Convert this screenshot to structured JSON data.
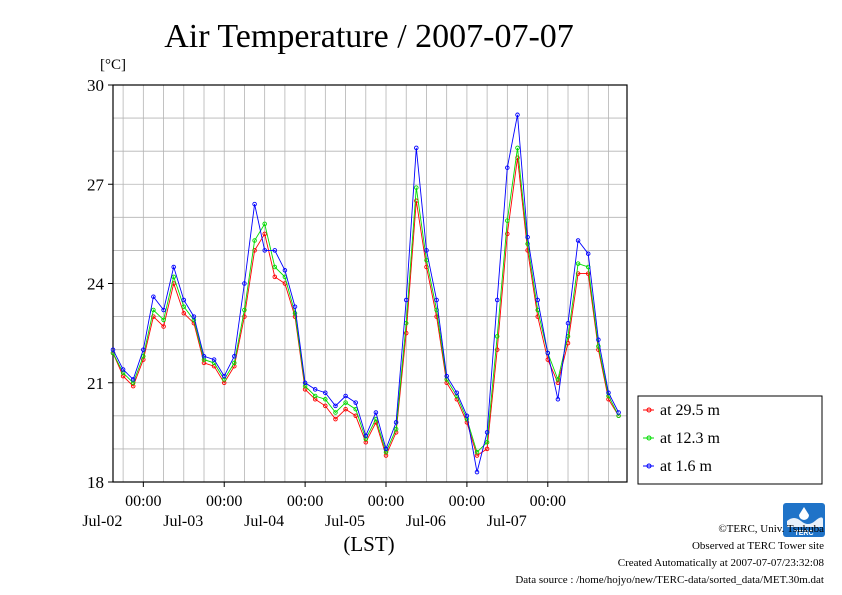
{
  "chart_data": {
    "type": "line",
    "title": "Air Temperature / 2007-07-07",
    "ylabel": "[°C]",
    "xlabel": "(LST)",
    "ylim": [
      18,
      30
    ],
    "yticks": [
      18,
      21,
      24,
      27,
      30
    ],
    "xlim": [
      "2007-07-01 15:00",
      "2007-07-07 23:30"
    ],
    "xticks": [
      {
        "time": "2007-07-02 00:00",
        "label": "00:00",
        "date": "Jul-02"
      },
      {
        "time": "2007-07-03 00:00",
        "label": "00:00",
        "date": "Jul-03"
      },
      {
        "time": "2007-07-04 00:00",
        "label": "00:00",
        "date": "Jul-04"
      },
      {
        "time": "2007-07-05 00:00",
        "label": "00:00",
        "date": "Jul-05"
      },
      {
        "time": "2007-07-06 00:00",
        "label": "00:00",
        "date": "Jul-06"
      },
      {
        "time": "2007-07-07 00:00",
        "label": "00:00",
        "date": "Jul-07"
      }
    ],
    "grid": true,
    "legend_position": "right",
    "series": [
      {
        "name": "at 29.5 m",
        "color": "#ff0000",
        "points": [
          [
            "2007-07-01 15:00",
            21.9
          ],
          [
            "2007-07-01 18:00",
            21.2
          ],
          [
            "2007-07-01 21:00",
            20.9
          ],
          [
            "2007-07-02 00:00",
            21.7
          ],
          [
            "2007-07-02 03:00",
            23.0
          ],
          [
            "2007-07-02 06:00",
            22.7
          ],
          [
            "2007-07-02 09:00",
            24.0
          ],
          [
            "2007-07-02 12:00",
            23.1
          ],
          [
            "2007-07-02 15:00",
            22.8
          ],
          [
            "2007-07-02 18:00",
            21.6
          ],
          [
            "2007-07-02 21:00",
            21.5
          ],
          [
            "2007-07-03 00:00",
            21.0
          ],
          [
            "2007-07-03 03:00",
            21.5
          ],
          [
            "2007-07-03 06:00",
            23.0
          ],
          [
            "2007-07-03 09:00",
            25.0
          ],
          [
            "2007-07-03 12:00",
            25.5
          ],
          [
            "2007-07-03 15:00",
            24.2
          ],
          [
            "2007-07-03 18:00",
            24.0
          ],
          [
            "2007-07-03 21:00",
            23.0
          ],
          [
            "2007-07-04 00:00",
            20.8
          ],
          [
            "2007-07-04 03:00",
            20.5
          ],
          [
            "2007-07-04 06:00",
            20.3
          ],
          [
            "2007-07-04 09:00",
            19.9
          ],
          [
            "2007-07-04 12:00",
            20.2
          ],
          [
            "2007-07-04 15:00",
            20.0
          ],
          [
            "2007-07-04 18:00",
            19.2
          ],
          [
            "2007-07-04 21:00",
            19.8
          ],
          [
            "2007-07-05 00:00",
            18.8
          ],
          [
            "2007-07-05 03:00",
            19.5
          ],
          [
            "2007-07-05 06:00",
            22.5
          ],
          [
            "2007-07-05 09:00",
            26.5
          ],
          [
            "2007-07-05 12:00",
            24.5
          ],
          [
            "2007-07-05 15:00",
            23.0
          ],
          [
            "2007-07-05 18:00",
            21.0
          ],
          [
            "2007-07-05 21:00",
            20.5
          ],
          [
            "2007-07-06 00:00",
            19.8
          ],
          [
            "2007-07-06 03:00",
            18.8
          ],
          [
            "2007-07-06 06:00",
            19.0
          ],
          [
            "2007-07-06 09:00",
            22.0
          ],
          [
            "2007-07-06 12:00",
            25.5
          ],
          [
            "2007-07-06 15:00",
            27.8
          ],
          [
            "2007-07-06 18:00",
            25.0
          ],
          [
            "2007-07-06 21:00",
            23.0
          ],
          [
            "2007-07-07 00:00",
            21.7
          ],
          [
            "2007-07-07 03:00",
            21.0
          ],
          [
            "2007-07-07 06:00",
            22.2
          ],
          [
            "2007-07-07 09:00",
            24.3
          ],
          [
            "2007-07-07 12:00",
            24.3
          ],
          [
            "2007-07-07 15:00",
            22.0
          ],
          [
            "2007-07-07 18:00",
            20.5
          ],
          [
            "2007-07-07 21:00",
            20.0
          ]
        ]
      },
      {
        "name": "at 12.3 m",
        "color": "#00dd00",
        "points": [
          [
            "2007-07-01 15:00",
            21.9
          ],
          [
            "2007-07-01 18:00",
            21.3
          ],
          [
            "2007-07-01 21:00",
            21.0
          ],
          [
            "2007-07-02 00:00",
            21.8
          ],
          [
            "2007-07-02 03:00",
            23.2
          ],
          [
            "2007-07-02 06:00",
            22.9
          ],
          [
            "2007-07-02 09:00",
            24.2
          ],
          [
            "2007-07-02 12:00",
            23.3
          ],
          [
            "2007-07-02 15:00",
            22.9
          ],
          [
            "2007-07-02 18:00",
            21.7
          ],
          [
            "2007-07-02 21:00",
            21.6
          ],
          [
            "2007-07-03 00:00",
            21.1
          ],
          [
            "2007-07-03 03:00",
            21.6
          ],
          [
            "2007-07-03 06:00",
            23.2
          ],
          [
            "2007-07-03 09:00",
            25.3
          ],
          [
            "2007-07-03 12:00",
            25.8
          ],
          [
            "2007-07-03 15:00",
            24.5
          ],
          [
            "2007-07-03 18:00",
            24.2
          ],
          [
            "2007-07-03 21:00",
            23.1
          ],
          [
            "2007-07-04 00:00",
            20.9
          ],
          [
            "2007-07-04 03:00",
            20.6
          ],
          [
            "2007-07-04 06:00",
            20.5
          ],
          [
            "2007-07-04 09:00",
            20.1
          ],
          [
            "2007-07-04 12:00",
            20.4
          ],
          [
            "2007-07-04 15:00",
            20.2
          ],
          [
            "2007-07-04 18:00",
            19.3
          ],
          [
            "2007-07-04 21:00",
            19.9
          ],
          [
            "2007-07-05 00:00",
            18.9
          ],
          [
            "2007-07-05 03:00",
            19.6
          ],
          [
            "2007-07-05 06:00",
            22.8
          ],
          [
            "2007-07-05 09:00",
            26.9
          ],
          [
            "2007-07-05 12:00",
            24.7
          ],
          [
            "2007-07-05 15:00",
            23.2
          ],
          [
            "2007-07-05 18:00",
            21.1
          ],
          [
            "2007-07-05 21:00",
            20.6
          ],
          [
            "2007-07-06 00:00",
            19.9
          ],
          [
            "2007-07-06 03:00",
            18.9
          ],
          [
            "2007-07-06 06:00",
            19.2
          ],
          [
            "2007-07-06 09:00",
            22.4
          ],
          [
            "2007-07-06 12:00",
            25.9
          ],
          [
            "2007-07-06 15:00",
            28.1
          ],
          [
            "2007-07-06 18:00",
            25.2
          ],
          [
            "2007-07-06 21:00",
            23.2
          ],
          [
            "2007-07-07 00:00",
            21.9
          ],
          [
            "2007-07-07 03:00",
            21.1
          ],
          [
            "2007-07-07 06:00",
            22.4
          ],
          [
            "2007-07-07 09:00",
            24.6
          ],
          [
            "2007-07-07 12:00",
            24.5
          ],
          [
            "2007-07-07 15:00",
            22.1
          ],
          [
            "2007-07-07 18:00",
            20.6
          ],
          [
            "2007-07-07 21:00",
            20.0
          ]
        ]
      },
      {
        "name": "at 1.6 m",
        "color": "#0000ff",
        "points": [
          [
            "2007-07-01 15:00",
            22.0
          ],
          [
            "2007-07-01 18:00",
            21.4
          ],
          [
            "2007-07-01 21:00",
            21.1
          ],
          [
            "2007-07-02 00:00",
            22.0
          ],
          [
            "2007-07-02 03:00",
            23.6
          ],
          [
            "2007-07-02 06:00",
            23.2
          ],
          [
            "2007-07-02 09:00",
            24.5
          ],
          [
            "2007-07-02 12:00",
            23.5
          ],
          [
            "2007-07-02 15:00",
            23.0
          ],
          [
            "2007-07-02 18:00",
            21.8
          ],
          [
            "2007-07-02 21:00",
            21.7
          ],
          [
            "2007-07-03 00:00",
            21.2
          ],
          [
            "2007-07-03 03:00",
            21.8
          ],
          [
            "2007-07-03 06:00",
            24.0
          ],
          [
            "2007-07-03 09:00",
            26.4
          ],
          [
            "2007-07-03 12:00",
            25.0
          ],
          [
            "2007-07-03 15:00",
            25.0
          ],
          [
            "2007-07-03 18:00",
            24.4
          ],
          [
            "2007-07-03 21:00",
            23.3
          ],
          [
            "2007-07-04 00:00",
            21.0
          ],
          [
            "2007-07-04 03:00",
            20.8
          ],
          [
            "2007-07-04 06:00",
            20.7
          ],
          [
            "2007-07-04 09:00",
            20.3
          ],
          [
            "2007-07-04 12:00",
            20.6
          ],
          [
            "2007-07-04 15:00",
            20.4
          ],
          [
            "2007-07-04 18:00",
            19.4
          ],
          [
            "2007-07-04 21:00",
            20.1
          ],
          [
            "2007-07-05 00:00",
            19.0
          ],
          [
            "2007-07-05 03:00",
            19.8
          ],
          [
            "2007-07-05 06:00",
            23.5
          ],
          [
            "2007-07-05 09:00",
            28.1
          ],
          [
            "2007-07-05 12:00",
            25.0
          ],
          [
            "2007-07-05 15:00",
            23.5
          ],
          [
            "2007-07-05 18:00",
            21.2
          ],
          [
            "2007-07-05 21:00",
            20.7
          ],
          [
            "2007-07-06 00:00",
            20.0
          ],
          [
            "2007-07-06 03:00",
            18.3
          ],
          [
            "2007-07-06 06:00",
            19.5
          ],
          [
            "2007-07-06 09:00",
            23.5
          ],
          [
            "2007-07-06 12:00",
            27.5
          ],
          [
            "2007-07-06 15:00",
            29.1
          ],
          [
            "2007-07-06 18:00",
            25.4
          ],
          [
            "2007-07-06 21:00",
            23.5
          ],
          [
            "2007-07-07 00:00",
            21.9
          ],
          [
            "2007-07-07 03:00",
            20.5
          ],
          [
            "2007-07-07 06:00",
            22.8
          ],
          [
            "2007-07-07 09:00",
            25.3
          ],
          [
            "2007-07-07 12:00",
            24.9
          ],
          [
            "2007-07-07 15:00",
            22.3
          ],
          [
            "2007-07-07 18:00",
            20.7
          ],
          [
            "2007-07-07 21:00",
            20.1
          ]
        ]
      }
    ]
  },
  "footer": {
    "copyright": "©TERC, Univ. Tsukuba",
    "observed": "Observed at TERC Tower site",
    "created": "Created Automatically at 2007-07-07/23:32:08",
    "source": "Data source : /home/hojyo/new/TERC-data/sorted_data/MET.30m.dat"
  },
  "logo": {
    "text": "TERC",
    "color": "#1f73c8"
  }
}
